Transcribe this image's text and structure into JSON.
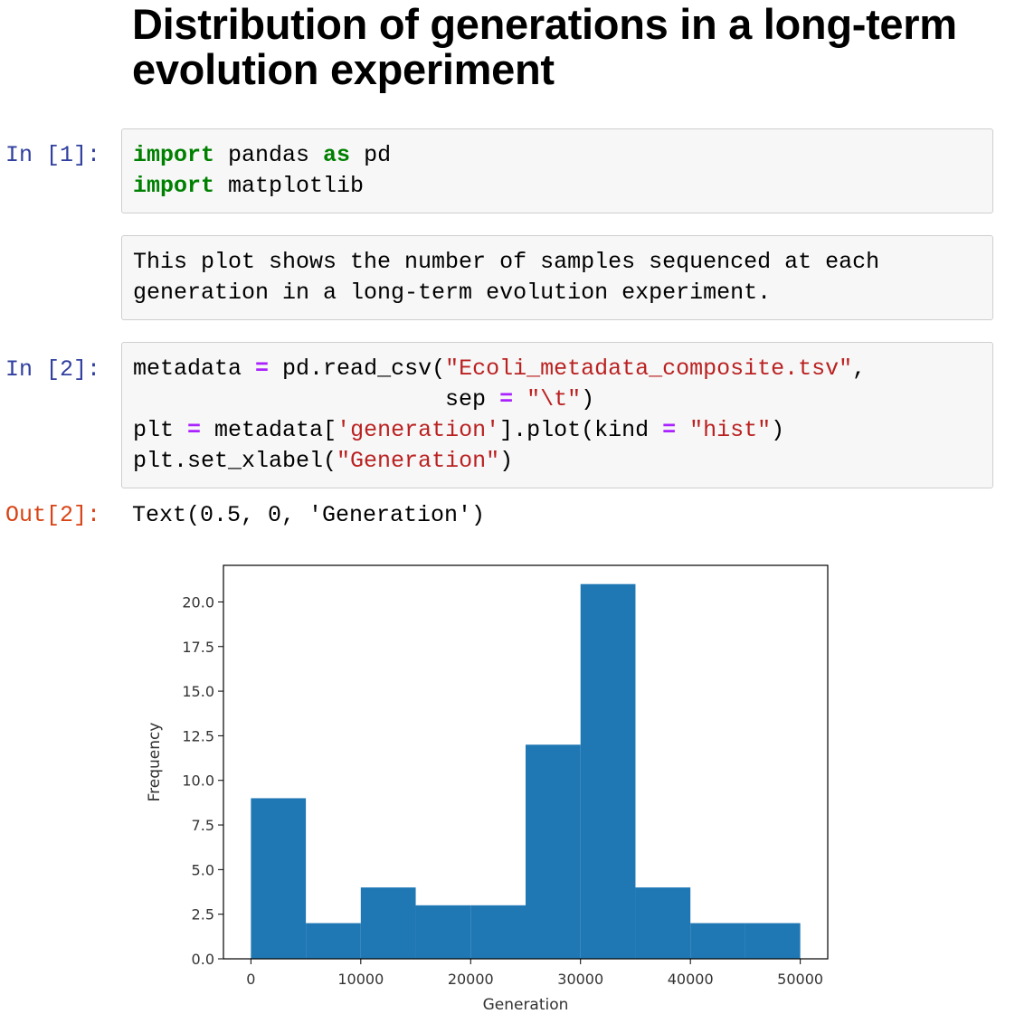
{
  "title": "Distribution of generations in a long-term evolution experiment",
  "cells": {
    "cell1": {
      "prompt": "In [1]:",
      "lines": [
        [
          {
            "t": "import",
            "c": "kw"
          },
          {
            "t": " pandas ",
            "c": ""
          },
          {
            "t": "as",
            "c": "kw"
          },
          {
            "t": " pd",
            "c": ""
          }
        ],
        [
          {
            "t": "import",
            "c": "kw"
          },
          {
            "t": " matplotlib",
            "c": ""
          }
        ]
      ]
    },
    "markdown": {
      "lines": [
        "This plot shows the number of samples sequenced at each",
        "generation in a long-term evolution experiment."
      ]
    },
    "cell2": {
      "prompt": "In [2]:",
      "lines": [
        [
          {
            "t": "metadata ",
            "c": ""
          },
          {
            "t": "=",
            "c": "op"
          },
          {
            "t": " pd.read_csv(",
            "c": ""
          },
          {
            "t": "\"Ecoli_metadata_composite.tsv\"",
            "c": "str"
          },
          {
            "t": ",",
            "c": ""
          }
        ],
        [
          {
            "t": "                       sep ",
            "c": ""
          },
          {
            "t": "=",
            "c": "op"
          },
          {
            "t": " ",
            "c": ""
          },
          {
            "t": "\"\\t\"",
            "c": "str"
          },
          {
            "t": ")",
            "c": ""
          }
        ],
        [
          {
            "t": "plt ",
            "c": ""
          },
          {
            "t": "=",
            "c": "op"
          },
          {
            "t": " metadata[",
            "c": ""
          },
          {
            "t": "'generation'",
            "c": "str"
          },
          {
            "t": "].plot(kind ",
            "c": ""
          },
          {
            "t": "=",
            "c": "op"
          },
          {
            "t": " ",
            "c": ""
          },
          {
            "t": "\"hist\"",
            "c": "str"
          },
          {
            "t": ")",
            "c": ""
          }
        ],
        [
          {
            "t": "plt.set_xlabel(",
            "c": ""
          },
          {
            "t": "\"Generation\"",
            "c": "str"
          },
          {
            "t": ")",
            "c": ""
          }
        ]
      ]
    },
    "output": {
      "prompt": "Out[2]:",
      "text": "Text(0.5, 0, 'Generation')"
    }
  },
  "chart_data": {
    "type": "bar",
    "bins": [
      [
        0,
        5000
      ],
      [
        5000,
        10000
      ],
      [
        10000,
        15000
      ],
      [
        15000,
        20000
      ],
      [
        20000,
        25000
      ],
      [
        25000,
        30000
      ],
      [
        30000,
        35000
      ],
      [
        35000,
        40000
      ],
      [
        40000,
        45000
      ],
      [
        45000,
        50000
      ]
    ],
    "values": [
      9,
      2,
      4,
      3,
      3,
      12,
      21,
      4,
      2,
      2
    ],
    "xlabel": "Generation",
    "ylabel": "Frequency",
    "xticks": [
      "0",
      "10000",
      "20000",
      "30000",
      "40000",
      "50000"
    ],
    "xtick_values": [
      0,
      10000,
      20000,
      30000,
      40000,
      50000
    ],
    "yticks": [
      "0.0",
      "2.5",
      "5.0",
      "7.5",
      "10.0",
      "12.5",
      "15.0",
      "17.5",
      "20.0"
    ],
    "ytick_values": [
      0,
      2.5,
      5,
      7.5,
      10,
      12.5,
      15,
      17.5,
      20
    ],
    "xlim": [
      -2500,
      52500
    ],
    "ylim": [
      0,
      22.05
    ],
    "bar_color": "#1f77b4"
  }
}
